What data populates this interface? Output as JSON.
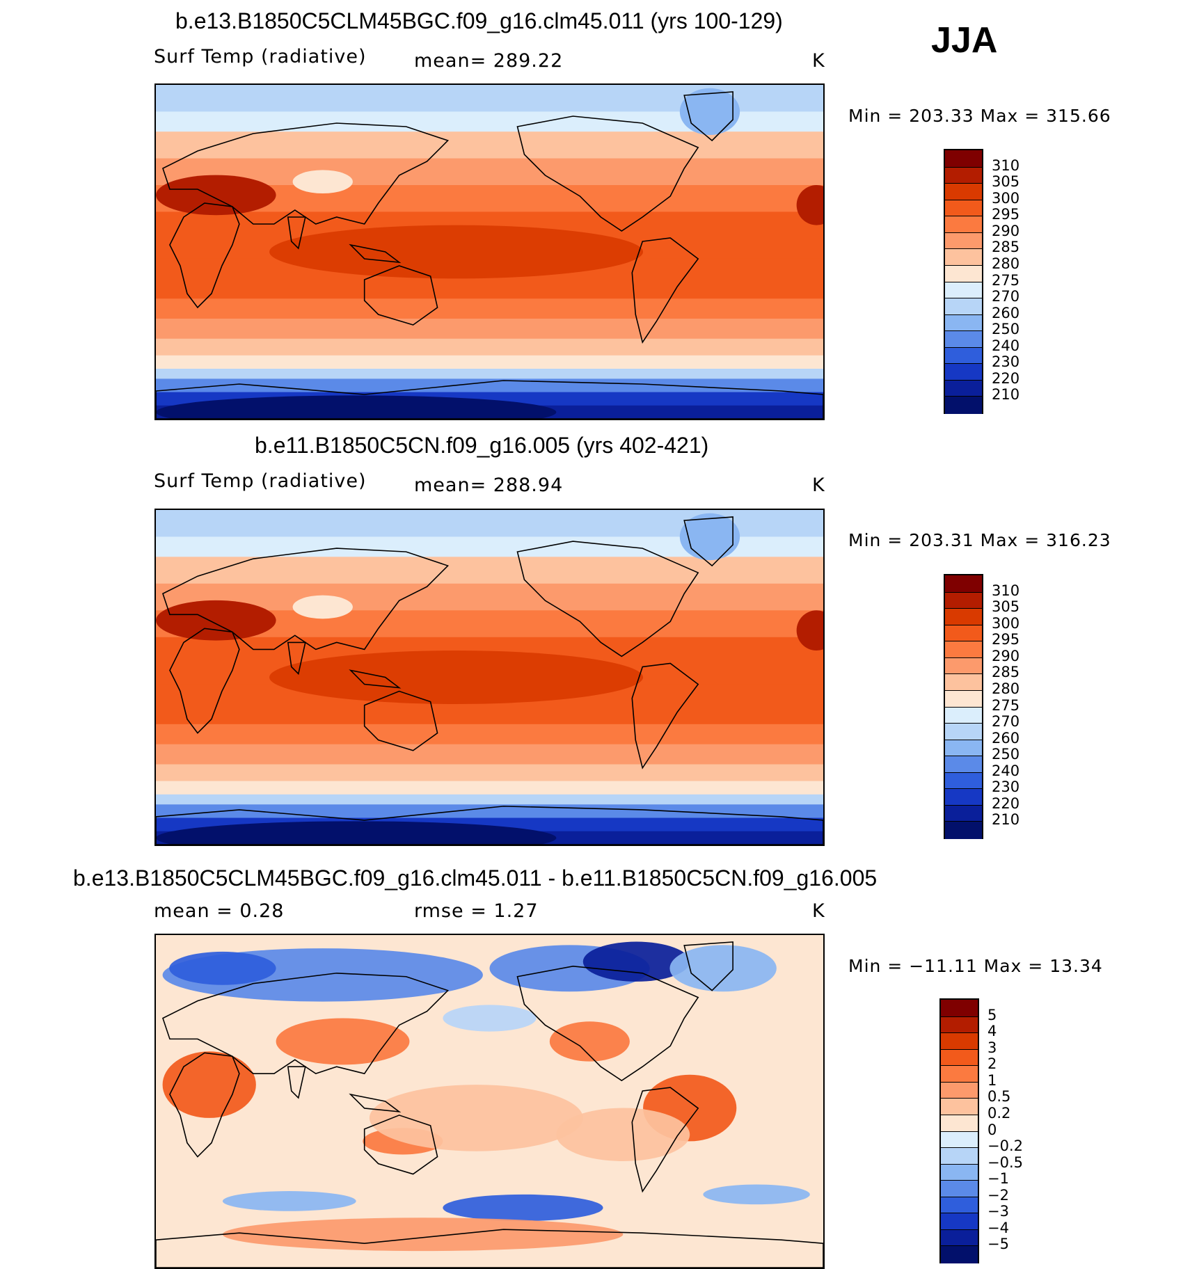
{
  "season": "JJA",
  "units": "K",
  "panels": [
    {
      "title": "b.e13.B1850C5CLM45BGC.f09_g16.clm45.011 (yrs 100-129)",
      "variable": "Surf Temp (radiative)",
      "mean_text": "mean= 289.22",
      "units": "K",
      "minmax": "Min = 203.33 Max = 315.66",
      "colorbar": {
        "labels": [
          "310",
          "305",
          "300",
          "295",
          "290",
          "285",
          "280",
          "275",
          "270",
          "260",
          "250",
          "240",
          "230",
          "220",
          "210"
        ],
        "colors": [
          "#7f0000",
          "#b31d00",
          "#d93a00",
          "#f25a1b",
          "#fb7a40",
          "#fc9a6c",
          "#fdc29e",
          "#fde6d2",
          "#dbeefc",
          "#b7d5f7",
          "#8ab6f2",
          "#5b8ae8",
          "#2f5edc",
          "#1638c4",
          "#0a1f9a",
          "#02106b"
        ]
      },
      "map": {
        "type": "absolute"
      }
    },
    {
      "title": "b.e11.B1850C5CN.f09_g16.005 (yrs 402-421)",
      "variable": "Surf Temp (radiative)",
      "mean_text": "mean= 288.94",
      "units": "K",
      "minmax": "Min = 203.31 Max = 316.23",
      "colorbar": {
        "labels": [
          "310",
          "305",
          "300",
          "295",
          "290",
          "285",
          "280",
          "275",
          "270",
          "260",
          "250",
          "240",
          "230",
          "220",
          "210"
        ],
        "colors": [
          "#7f0000",
          "#b31d00",
          "#d93a00",
          "#f25a1b",
          "#fb7a40",
          "#fc9a6c",
          "#fdc29e",
          "#fde6d2",
          "#dbeefc",
          "#b7d5f7",
          "#8ab6f2",
          "#5b8ae8",
          "#2f5edc",
          "#1638c4",
          "#0a1f9a",
          "#02106b"
        ]
      },
      "map": {
        "type": "absolute"
      }
    },
    {
      "title": "b.e13.B1850C5CLM45BGC.f09_g16.clm45.011 - b.e11.B1850C5CN.f09_g16.005",
      "variable": "mean =    0.28",
      "mean_text": "rmse =    1.27",
      "units": "K",
      "minmax": "Min = −11.11 Max =  13.34",
      "colorbar": {
        "labels": [
          "5",
          "4",
          "3",
          "2",
          "1",
          "0.5",
          "0.2",
          "0",
          "−0.2",
          "−0.5",
          "−1",
          "−2",
          "−3",
          "−4",
          "−5"
        ],
        "colors": [
          "#7f0000",
          "#b31d00",
          "#d93a00",
          "#f25a1b",
          "#fb7a40",
          "#fc9a6c",
          "#fdc29e",
          "#fde6d2",
          "#dbeefc",
          "#b7d5f7",
          "#8ab6f2",
          "#5b8ae8",
          "#2f5edc",
          "#1638c4",
          "#0a1f9a",
          "#02106b"
        ]
      },
      "map": {
        "type": "difference"
      }
    }
  ]
}
